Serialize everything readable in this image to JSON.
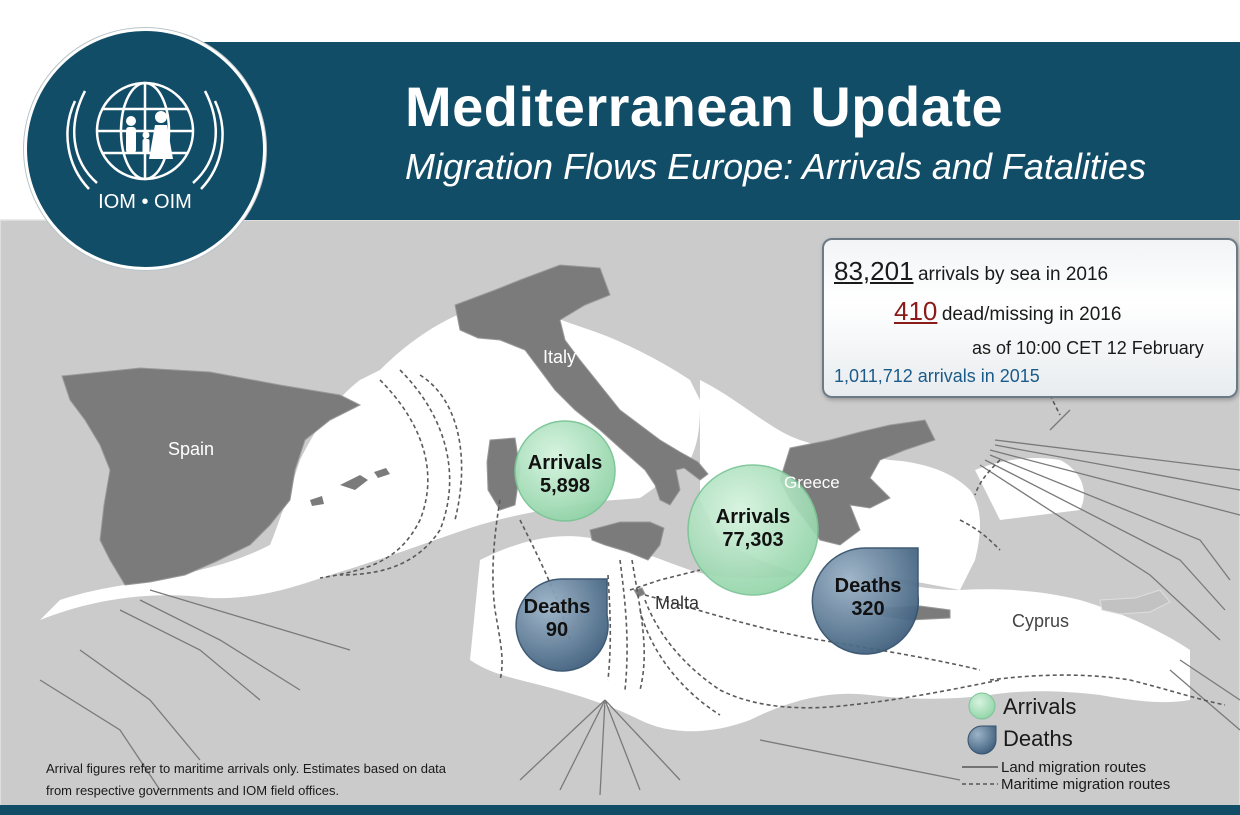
{
  "header": {
    "title": "Mediterranean Update",
    "subtitle": "Migration Flows Europe: Arrivals and Fatalities",
    "logo_text": "IOM • OIM"
  },
  "stats": {
    "sea_arrivals_2016": "83,201",
    "sea_arrivals_label": "arrivals by sea in 2016",
    "dead_missing_2016": "410",
    "dead_missing_label": "dead/missing in 2016",
    "as_of": "as of 10:00 CET 12 February",
    "arrivals_2015": "1,011,712 arrivals in 2015"
  },
  "countries": {
    "spain": "Spain",
    "italy": "Italy",
    "greece": "Greece",
    "malta": "Malta",
    "cyprus": "Cyprus"
  },
  "bubbles": {
    "italy_arrivals": {
      "label": "Arrivals",
      "value": "5,898"
    },
    "greece_arrivals": {
      "label": "Arrivals",
      "value": "77,303"
    },
    "italy_deaths": {
      "label": "Deaths",
      "value": "90"
    },
    "greece_deaths": {
      "label": "Deaths",
      "value": "320"
    }
  },
  "legend": {
    "arrivals": "Arrivals",
    "deaths": "Deaths",
    "land_routes": "Land migration routes",
    "maritime_routes": "Maritime migration routes"
  },
  "footnote": {
    "line1": "Arrival figures  refer to maritime arrivals only. Estimates based on data",
    "line2": "from respective governments and IOM field offices."
  },
  "colors": {
    "banner": "#124d67",
    "arrivals_bubble": "#9fdcb3",
    "deaths_bubble": "#4f6f8c",
    "highlight_land": "#7a7a7a",
    "other_land": "#c9c9c9",
    "sea": "#ffffff",
    "dead_missing_number": "#8b1a1a",
    "arrivals_2015_text": "#1a5b8a"
  }
}
